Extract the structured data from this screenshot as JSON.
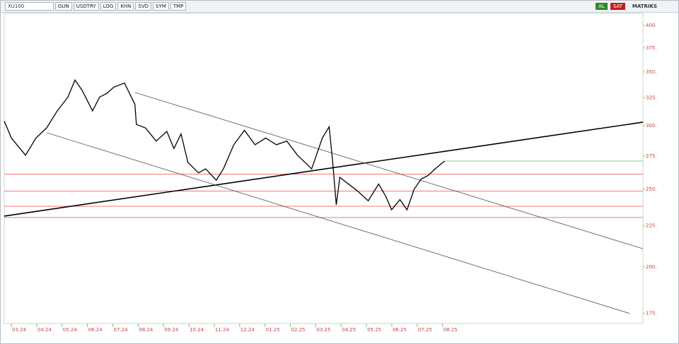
{
  "toolbar": {
    "symbol": "XU100",
    "buttons": [
      "GUN",
      "USDTRY",
      "LOG",
      "KHN",
      "SVD",
      "SYM",
      "TMP"
    ],
    "right": [
      "AL",
      "SAT",
      "MATRIKS"
    ]
  },
  "chart_data": {
    "type": "line",
    "log_scale": true,
    "x": [
      -0.28,
      0,
      0.56,
      0.97,
      1.39,
      1.81,
      2.23,
      2.51,
      2.79,
      3.2,
      3.48,
      3.76,
      4.04,
      4.46,
      4.87,
      4.93,
      5.29,
      5.71,
      6.13,
      6.41,
      6.69,
      6.96,
      7.38,
      7.66,
      8.08,
      8.36,
      8.77,
      9.19,
      9.61,
      10.03,
      10.45,
      10.86,
      11.28,
      11.84,
      12.26,
      12.53,
      12.67,
      12.81,
      12.95,
      13.37,
      13.65,
      14.07,
      14.48,
      14.76,
      14.99,
      15.32,
      15.6,
      15.88,
      16.16,
      16.43,
      16.71,
      17.08
    ],
    "series": [
      {
        "color": "#000000",
        "values": [
          304,
          289.5,
          275.6,
          289.5,
          298,
          313,
          325.6,
          342,
          332,
          313,
          325.6,
          329,
          335,
          339,
          319,
          301,
          298,
          287,
          295,
          281,
          293,
          270,
          262,
          265,
          256.5,
          265,
          284,
          296,
          284,
          289.5,
          284,
          287,
          275.6,
          265,
          289.5,
          299,
          270,
          239,
          258.6,
          252.6,
          248.6,
          241.8,
          253.7,
          245,
          235.6,
          242.6,
          235.6,
          250,
          257.4,
          260,
          265,
          271
        ]
      }
    ],
    "xlim": [
      -0.28,
      24.9
    ],
    "ylim": [
      170,
      414
    ],
    "xticks": [
      {
        "value": 0,
        "label": "03.24"
      },
      {
        "value": 1,
        "label": "04.24"
      },
      {
        "value": 2,
        "label": "05.24"
      },
      {
        "value": 3,
        "label": "06.24"
      },
      {
        "value": 4,
        "label": "07.24"
      },
      {
        "value": 5,
        "label": "08.24"
      },
      {
        "value": 6,
        "label": "09.24"
      },
      {
        "value": 7,
        "label": "10.24"
      },
      {
        "value": 8,
        "label": "11.24"
      },
      {
        "value": 9,
        "label": "12.24"
      },
      {
        "value": 10,
        "label": "01.25"
      },
      {
        "value": 11,
        "label": "02.25"
      },
      {
        "value": 12,
        "label": "03.25"
      },
      {
        "value": 13,
        "label": "04.25"
      },
      {
        "value": 14,
        "label": "05.25"
      },
      {
        "value": 15,
        "label": "06.25"
      },
      {
        "value": 16,
        "label": "07.25"
      },
      {
        "value": 17,
        "label": "08.25"
      }
    ],
    "yticks": [
      {
        "value": 400,
        "label": "400."
      },
      {
        "value": 375,
        "label": "375."
      },
      {
        "value": 350,
        "label": "350."
      },
      {
        "value": 325,
        "label": "325."
      },
      {
        "value": 300,
        "label": "300."
      },
      {
        "value": 275,
        "label": "275."
      },
      {
        "value": 250,
        "label": "250."
      },
      {
        "value": 225,
        "label": "225."
      },
      {
        "value": 200,
        "label": "200."
      },
      {
        "value": 175,
        "label": "175."
      }
    ],
    "hlines": [
      {
        "value": 261,
        "color": "#f07878"
      },
      {
        "value": 248.6,
        "color": "#f07878"
      },
      {
        "value": 238,
        "color": "#f07878"
      },
      {
        "value": 230.5,
        "color": "#f07878"
      },
      {
        "value": 271,
        "color": "#80d080",
        "x_start": 17.08
      }
    ],
    "trendlines": [
      {
        "x": [
          -0.28,
          24.9
        ],
        "y": [
          231.4,
          303
        ],
        "color": "#000000"
      },
      {
        "x": [
          4.87,
          24.9
        ],
        "y": [
          330,
          210.7
        ],
        "color": "#555555"
      },
      {
        "x": [
          1.39,
          24.37
        ],
        "y": [
          294,
          175
        ],
        "color": "#555555"
      }
    ]
  }
}
